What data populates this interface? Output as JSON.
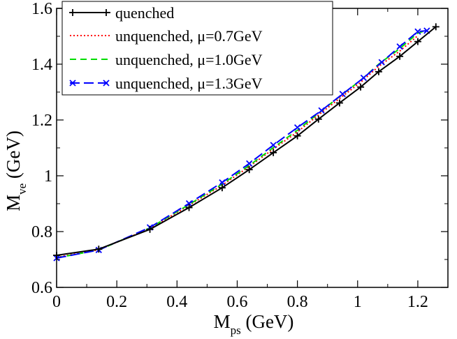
{
  "chart_data": {
    "type": "line",
    "title": "",
    "xlabel": {
      "main": "M",
      "sub": "ps",
      "unit": " (GeV)"
    },
    "ylabel": {
      "main": "M",
      "sub": "ve",
      "unit": " (GeV)"
    },
    "xlim": [
      0,
      1.3
    ],
    "ylim": [
      0.6,
      1.6
    ],
    "xticks": [
      0,
      0.2,
      0.4,
      0.6,
      0.8,
      1,
      1.2
    ],
    "xtick_labels": [
      "0",
      "0.2",
      "0.4",
      "0.6",
      "0.8",
      "1",
      "1.2"
    ],
    "yticks": [
      0.6,
      0.8,
      1,
      1.2,
      1.4,
      1.6
    ],
    "ytick_labels": [
      "0.6",
      "0.8",
      "1",
      "1.2",
      "1.4",
      "1.6"
    ],
    "grid": false,
    "legend_position": "top-left",
    "series": [
      {
        "name": "quenched",
        "color": "#000000",
        "dash": "",
        "marker": "plus",
        "x": [
          0,
          0.14,
          0.31,
          0.44,
          0.55,
          0.64,
          0.72,
          0.8,
          0.87,
          0.94,
          1.01,
          1.07,
          1.14,
          1.2,
          1.26
        ],
        "y": [
          0.715,
          0.737,
          0.808,
          0.886,
          0.957,
          1.022,
          1.083,
          1.143,
          1.203,
          1.261,
          1.318,
          1.373,
          1.428,
          1.481,
          1.534
        ]
      },
      {
        "name": "unquenched, μ=0.7GeV",
        "color": "#ff0000",
        "dash": "2,3",
        "marker": "none",
        "x": [
          0,
          0.14,
          0.31,
          0.44,
          0.55,
          0.64,
          0.72,
          0.8,
          0.87,
          0.94,
          1.01,
          1.07,
          1.14,
          1.2
        ],
        "y": [
          0.708,
          0.735,
          0.811,
          0.894,
          0.966,
          1.033,
          1.096,
          1.157,
          1.218,
          1.277,
          1.335,
          1.392,
          1.447,
          1.502
        ]
      },
      {
        "name": "unquenched, μ=1.0GeV",
        "color": "#00dd00",
        "dash": "9,6",
        "marker": "none",
        "x": [
          0,
          0.14,
          0.31,
          0.44,
          0.55,
          0.64,
          0.72,
          0.8,
          0.87,
          0.94,
          1.01,
          1.07,
          1.14,
          1.2,
          1.23
        ],
        "y": [
          0.706,
          0.734,
          0.813,
          0.897,
          0.97,
          1.037,
          1.101,
          1.163,
          1.224,
          1.284,
          1.342,
          1.4,
          1.456,
          1.511,
          1.522
        ]
      },
      {
        "name": "unquenched, μ=1.3GeV",
        "color": "#0000ff",
        "dash": "14,6",
        "marker": "x",
        "x": [
          0,
          0.14,
          0.31,
          0.44,
          0.55,
          0.64,
          0.72,
          0.8,
          0.88,
          0.95,
          1.02,
          1.08,
          1.14,
          1.2,
          1.23
        ],
        "y": [
          0.705,
          0.734,
          0.815,
          0.901,
          0.976,
          1.044,
          1.11,
          1.173,
          1.234,
          1.293,
          1.351,
          1.407,
          1.463,
          1.517,
          1.52
        ]
      }
    ]
  }
}
